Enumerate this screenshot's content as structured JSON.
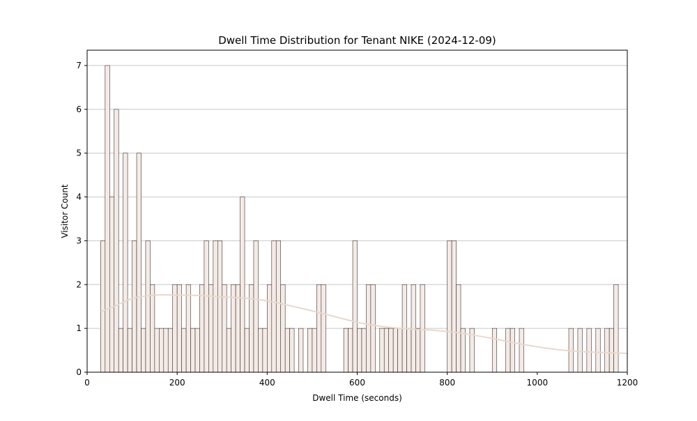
{
  "chart_data": {
    "type": "bar",
    "title": "Dwell Time Distribution for Tenant NIKE (2024-12-09)",
    "xlabel": "Dwell Time (seconds)",
    "ylabel": "Visitor Count",
    "xlim": [
      0,
      1200
    ],
    "ylim": [
      0,
      7.35
    ],
    "xticks": [
      0,
      200,
      400,
      600,
      800,
      1000,
      1200
    ],
    "yticks": [
      0,
      1,
      2,
      3,
      4,
      5,
      6,
      7
    ],
    "grid": "horizontal",
    "bin_width": 10,
    "bin_start": 30,
    "counts": [
      3,
      7,
      4,
      6,
      1,
      5,
      1,
      3,
      5,
      1,
      3,
      2,
      1,
      1,
      1,
      1,
      2,
      2,
      1,
      2,
      1,
      1,
      2,
      3,
      2,
      3,
      3,
      2,
      1,
      2,
      2,
      4,
      1,
      2,
      3,
      1,
      1,
      2,
      3,
      3,
      2,
      1,
      1,
      0,
      1,
      0,
      1,
      1,
      2,
      2,
      0,
      0,
      0,
      0,
      1,
      1,
      3,
      1,
      1,
      2,
      2,
      0,
      1,
      1,
      1,
      1,
      1,
      2,
      1,
      2,
      1,
      2,
      0,
      0,
      0,
      0,
      0,
      3,
      3,
      2,
      1,
      0,
      1,
      0,
      0,
      0,
      0,
      1,
      0,
      0,
      1,
      1,
      0,
      1,
      0,
      0,
      0,
      0,
      0,
      0,
      0,
      0,
      0,
      0,
      1,
      0,
      1,
      0,
      1,
      0,
      1,
      0,
      1,
      1,
      2
    ],
    "kde": [
      [
        30,
        1.38
      ],
      [
        60,
        1.5
      ],
      [
        100,
        1.68
      ],
      [
        150,
        1.76
      ],
      [
        200,
        1.76
      ],
      [
        250,
        1.75
      ],
      [
        300,
        1.72
      ],
      [
        350,
        1.69
      ],
      [
        400,
        1.63
      ],
      [
        450,
        1.52
      ],
      [
        500,
        1.4
      ],
      [
        550,
        1.27
      ],
      [
        600,
        1.14
      ],
      [
        650,
        1.05
      ],
      [
        700,
        1.0
      ],
      [
        750,
        0.97
      ],
      [
        800,
        0.93
      ],
      [
        850,
        0.86
      ],
      [
        900,
        0.77
      ],
      [
        950,
        0.67
      ],
      [
        1000,
        0.58
      ],
      [
        1050,
        0.51
      ],
      [
        1100,
        0.47
      ],
      [
        1150,
        0.45
      ],
      [
        1200,
        0.43
      ]
    ],
    "bar_color": "#f5ebe6",
    "bar_edge_color": "#3a3030",
    "kde_color": "#e8d8cc",
    "grid_color": "#c8c8c8"
  }
}
